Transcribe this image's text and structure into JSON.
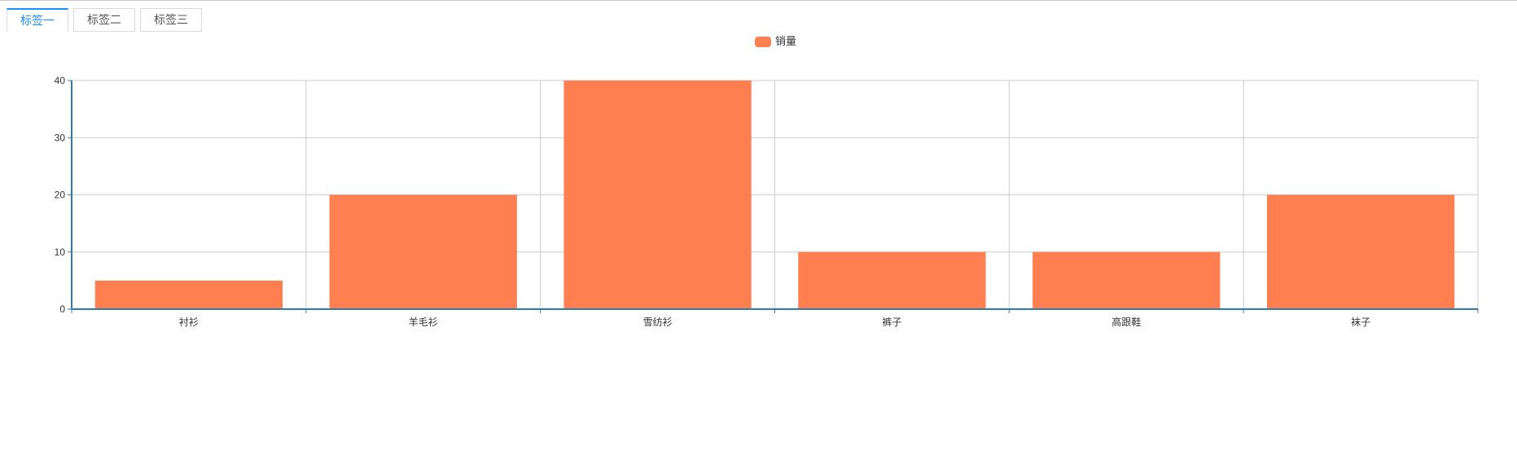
{
  "tabs": [
    {
      "label": "标签一",
      "active": true
    },
    {
      "label": "标签二",
      "active": false
    },
    {
      "label": "标签三",
      "active": false
    }
  ],
  "colors": {
    "accent": "#1890ff",
    "bar": "#ff7f50",
    "axis": "#2f7bb0",
    "grid": "#cccccc"
  },
  "chart_data": {
    "type": "bar",
    "legend": [
      "销量"
    ],
    "legend_position": "top-center",
    "categories": [
      "衬衫",
      "羊毛衫",
      "雪纺衫",
      "裤子",
      "高跟鞋",
      "袜子"
    ],
    "series": [
      {
        "name": "销量",
        "values": [
          5,
          20,
          40,
          10,
          10,
          20
        ]
      }
    ],
    "ylim": [
      0,
      40
    ],
    "yticks": [
      0,
      10,
      20,
      30,
      40
    ],
    "grid": true
  }
}
